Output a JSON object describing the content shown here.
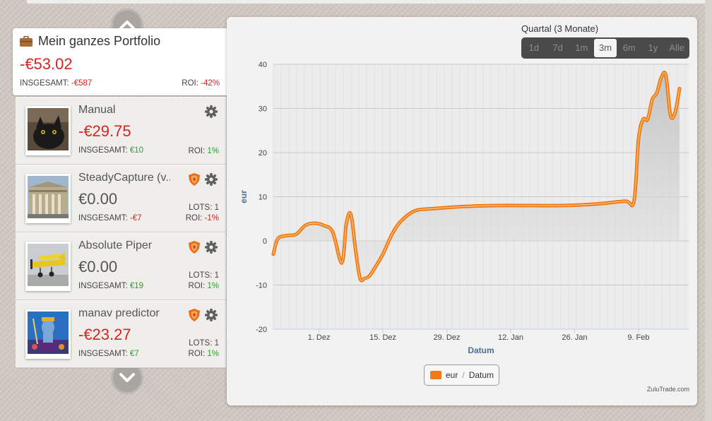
{
  "portfolio": {
    "title": "Mein ganzes Portfolio",
    "value": "-€53.02",
    "total_label": "INSGESAMT:",
    "total_value": "-€587",
    "roi_label": "ROI:",
    "roi_value": "-42%"
  },
  "traders": [
    {
      "name": "Manual",
      "value": "-€29.75",
      "total_label": "INSGESAMT:",
      "total_value": "€10",
      "roi_label": "ROI:",
      "roi_value": "1%",
      "has_shield": false
    },
    {
      "name": "SteadyCapture (v...",
      "value": "€0.00",
      "total_label": "INSGESAMT:",
      "total_value": "-€7",
      "lots_label": "LOTS:",
      "lots_value": "1",
      "roi_label": "ROI:",
      "roi_value": "-1%",
      "has_shield": true
    },
    {
      "name": "Absolute Piper",
      "value": "€0.00",
      "total_label": "INSGESAMT:",
      "total_value": "€19",
      "lots_label": "LOTS:",
      "lots_value": "1",
      "roi_label": "ROI:",
      "roi_value": "1%",
      "has_shield": true
    },
    {
      "name": "manav predictor",
      "value": "-€23.27",
      "total_label": "INSGESAMT:",
      "total_value": "€7",
      "lots_label": "LOTS:",
      "lots_value": "1",
      "roi_label": "ROI:",
      "roi_value": "1%",
      "has_shield": true
    }
  ],
  "range_selector": {
    "label": "Quartal (3 Monate)",
    "buttons": [
      "1d",
      "7d",
      "1m",
      "3m",
      "6m",
      "1y",
      "Alle"
    ],
    "active": "3m"
  },
  "legend": {
    "series": "eur",
    "separator": "/",
    "axis": "Datum"
  },
  "credit": "ZuluTrade.com",
  "colors": {
    "series": "#f07a14",
    "negative": "#d62424",
    "positive": "#2aa12a"
  },
  "chart_data": {
    "type": "area",
    "xlabel": "Datum",
    "ylabel": "eur",
    "ylim": [
      -20,
      40
    ],
    "yticks": [
      -20,
      -10,
      0,
      10,
      20,
      30,
      40
    ],
    "xticks": [
      "1. Dez",
      "15. Dez",
      "29. Dez",
      "12. Jan",
      "26. Jan",
      "9. Feb"
    ],
    "grid": true,
    "legend": "bottom-center",
    "series": [
      {
        "name": "eur",
        "x": [
          "2013-11-21",
          "2013-11-22",
          "2013-11-24",
          "2013-11-26",
          "2013-11-28",
          "2013-11-30",
          "2013-12-02",
          "2013-12-04",
          "2013-12-06",
          "2013-12-07",
          "2013-12-08",
          "2013-12-09",
          "2013-12-10",
          "2013-12-11",
          "2013-12-12",
          "2013-12-13",
          "2013-12-15",
          "2013-12-17",
          "2013-12-19",
          "2013-12-22",
          "2013-12-26",
          "2014-01-02",
          "2014-01-09",
          "2014-01-16",
          "2014-01-23",
          "2014-01-30",
          "2014-02-06",
          "2014-02-08",
          "2014-02-09",
          "2014-02-10",
          "2014-02-11",
          "2014-02-12",
          "2014-02-13",
          "2014-02-14",
          "2014-02-15",
          "2014-02-16",
          "2014-02-17",
          "2014-02-18"
        ],
        "values": [
          -3,
          0.5,
          1.2,
          1.5,
          3.5,
          4,
          3.5,
          2,
          -5,
          4,
          6,
          -2,
          -8.5,
          -8.5,
          -8,
          -6.5,
          -3,
          1.5,
          4.5,
          6.8,
          7.3,
          7.8,
          8,
          8,
          8,
          8.3,
          9,
          9,
          23,
          27.5,
          27.5,
          32,
          33.5,
          37,
          37.5,
          28.5,
          29,
          34.5
        ]
      }
    ]
  }
}
